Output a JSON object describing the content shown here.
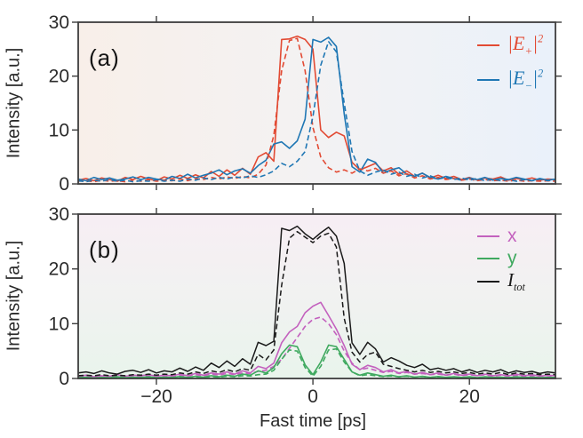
{
  "style": {
    "axis_color": "#3d3d3d",
    "tick_color": "#3d3d3d",
    "text_color": "#2b2b2b",
    "figure_background": "#ffffff"
  },
  "chart_data": [
    {
      "panel_key": "a",
      "panel_label": "(a)",
      "type": "line",
      "title": "",
      "xlabel": "",
      "ylabel": "Intensity [a.u.]",
      "xlim": [
        -30,
        31
      ],
      "ylim": [
        0,
        30
      ],
      "xticks": [
        -20,
        0,
        20
      ],
      "xtick_labels": [
        "−20",
        "0",
        "20"
      ],
      "show_xtick_labels": false,
      "yticks": [
        0,
        10,
        20,
        30
      ],
      "grid": false,
      "legend_position": "upper right",
      "background": {
        "direction": "horizontal",
        "stops": [
          {
            "offset": 0,
            "color": "#f8efe9"
          },
          {
            "offset": 0.5,
            "color": "#f3f2f3"
          },
          {
            "offset": 1,
            "color": "#eaf1fa"
          }
        ]
      },
      "x": [
        -30,
        -29,
        -28,
        -27,
        -26,
        -25,
        -24,
        -23,
        -22,
        -21,
        -20,
        -19,
        -18,
        -17,
        -16,
        -15,
        -14,
        -13,
        -12,
        -11,
        -10,
        -9,
        -8,
        -7,
        -6,
        -5,
        -4,
        -3,
        -2,
        -1,
        0,
        1,
        2,
        3,
        4,
        5,
        6,
        7,
        8,
        9,
        10,
        11,
        12,
        13,
        14,
        15,
        16,
        17,
        18,
        19,
        20,
        21,
        22,
        23,
        24,
        25,
        26,
        27,
        28,
        29,
        30,
        31
      ],
      "series": [
        {
          "id": "e-plus-solid",
          "legend": "|E₊|²",
          "style": "solid",
          "color": "#e24a33",
          "width": 1.6,
          "values": [
            0.7,
            1.0,
            0.6,
            1.1,
            0.8,
            0.5,
            1.2,
            0.8,
            1.4,
            0.9,
            0.6,
            1.3,
            0.9,
            1.6,
            1.0,
            1.7,
            1.1,
            2.3,
            1.4,
            2.6,
            1.6,
            2.9,
            1.8,
            5.0,
            5.8,
            4.2,
            26.8,
            26.9,
            27.4,
            26.8,
            25.0,
            10.0,
            8.6,
            9.6,
            8.9,
            4.0,
            2.6,
            3.2,
            3.8,
            2.4,
            3.0,
            1.8,
            2.4,
            1.4,
            2.0,
            1.1,
            1.6,
            1.0,
            1.4,
            0.8,
            1.2,
            0.7,
            1.1,
            0.9,
            1.3,
            0.7,
            1.0,
            0.8,
            1.1,
            0.7,
            0.9,
            0.8
          ]
        },
        {
          "id": "e-minus-solid",
          "legend": "|E₋|²",
          "style": "solid",
          "color": "#1f77b4",
          "width": 1.6,
          "values": [
            0.9,
            0.6,
            1.2,
            0.8,
            1.1,
            0.7,
            0.9,
            1.3,
            0.8,
            1.2,
            0.9,
            0.7,
            1.4,
            1.0,
            1.8,
            1.1,
            1.6,
            2.0,
            2.6,
            1.7,
            2.4,
            2.8,
            2.0,
            3.4,
            4.4,
            7.4,
            7.8,
            6.6,
            8.0,
            12.0,
            26.8,
            26.3,
            27.2,
            25.5,
            13.0,
            3.2,
            2.2,
            4.6,
            4.0,
            2.0,
            2.6,
            3.0,
            1.8,
            1.4,
            2.0,
            1.2,
            0.9,
            1.4,
            1.0,
            0.7,
            1.1,
            0.8,
            1.2,
            0.7,
            1.0,
            0.8,
            1.2,
            0.9,
            0.6,
            1.0,
            0.7,
            0.9
          ]
        },
        {
          "id": "e-plus-dashed",
          "legend": "|E₊|²",
          "style": "dashed",
          "color": "#e24a33",
          "width": 1.6,
          "values": [
            0.5,
            0.6,
            0.4,
            0.7,
            0.5,
            0.6,
            0.4,
            0.7,
            0.5,
            0.8,
            0.5,
            0.7,
            0.6,
            0.9,
            0.6,
            1.0,
            0.8,
            1.2,
            0.9,
            1.3,
            1.0,
            1.4,
            1.1,
            1.8,
            3.5,
            9.0,
            21.0,
            26.6,
            27.0,
            21.0,
            10.5,
            5.0,
            3.0,
            2.2,
            2.6,
            2.0,
            2.8,
            2.4,
            2.9,
            2.0,
            2.4,
            1.5,
            1.9,
            1.1,
            1.5,
            0.9,
            1.2,
            0.8,
            1.0,
            0.7,
            0.9,
            0.6,
            0.8,
            0.6,
            0.7,
            0.5,
            0.7,
            0.5,
            0.6,
            0.5,
            0.6,
            0.5
          ]
        },
        {
          "id": "e-minus-dashed",
          "legend": "|E₋|²",
          "style": "dashed",
          "color": "#1f77b4",
          "width": 1.6,
          "values": [
            0.6,
            0.4,
            0.7,
            0.5,
            0.8,
            0.5,
            0.7,
            0.4,
            0.6,
            0.5,
            0.8,
            0.5,
            0.7,
            0.5,
            0.9,
            0.7,
            1.1,
            0.8,
            1.2,
            0.9,
            1.3,
            1.1,
            1.5,
            1.2,
            1.7,
            2.4,
            3.8,
            3.2,
            4.2,
            6.0,
            12.5,
            22.0,
            26.4,
            24.5,
            15.0,
            6.0,
            2.4,
            1.6,
            2.2,
            2.6,
            1.8,
            2.2,
            1.4,
            1.8,
            1.1,
            1.5,
            0.9,
            1.2,
            0.8,
            1.1,
            0.7,
            1.0,
            0.6,
            0.9,
            0.6,
            0.8,
            0.5,
            0.8,
            0.6,
            0.9,
            0.6,
            0.8
          ]
        }
      ],
      "legend": [
        {
          "id": "e-plus",
          "text": "|E₊|²",
          "main": "|E",
          "sub": "+",
          "tail": "|",
          "sup": "2",
          "color": "#e24a33",
          "style": "serif-italic"
        },
        {
          "id": "e-minus",
          "text": "|E₋|²",
          "main": "|E",
          "sub": "−",
          "tail": "|",
          "sup": "2",
          "color": "#1f77b4",
          "style": "serif-italic"
        }
      ]
    },
    {
      "panel_key": "b",
      "panel_label": "(b)",
      "type": "line",
      "title": "",
      "xlabel": "Fast time [ps]",
      "ylabel": "Intensity [a.u.]",
      "xlim": [
        -30,
        31
      ],
      "ylim": [
        0,
        30
      ],
      "xticks": [
        -20,
        0,
        20
      ],
      "xtick_labels": [
        "−20",
        "0",
        "20"
      ],
      "show_xtick_labels": true,
      "yticks": [
        0,
        10,
        20,
        30
      ],
      "grid": false,
      "legend_position": "upper right",
      "background": {
        "direction": "vertical",
        "stops": [
          {
            "offset": 0,
            "color": "#f7eef4"
          },
          {
            "offset": 0.5,
            "color": "#f1f2f1"
          },
          {
            "offset": 1,
            "color": "#e9f4ec"
          }
        ]
      },
      "x": [
        -30,
        -29,
        -28,
        -27,
        -26,
        -25,
        -24,
        -23,
        -22,
        -21,
        -20,
        -19,
        -18,
        -17,
        -16,
        -15,
        -14,
        -13,
        -12,
        -11,
        -10,
        -9,
        -8,
        -7,
        -6,
        -5,
        -4,
        -3,
        -2,
        -1,
        0,
        1,
        2,
        3,
        4,
        5,
        6,
        7,
        8,
        9,
        10,
        11,
        12,
        13,
        14,
        15,
        16,
        17,
        18,
        19,
        20,
        21,
        22,
        23,
        24,
        25,
        26,
        27,
        28,
        29,
        30,
        31
      ],
      "series": [
        {
          "id": "x-solid",
          "legend": "x",
          "style": "solid",
          "color": "#c361be",
          "width": 1.6,
          "values": [
            0.4,
            0.6,
            0.3,
            0.5,
            0.4,
            0.7,
            0.4,
            0.6,
            0.5,
            0.7,
            0.4,
            0.6,
            0.5,
            0.8,
            0.5,
            0.9,
            0.6,
            1.0,
            0.8,
            1.2,
            0.8,
            1.4,
            1.0,
            2.2,
            1.8,
            2.8,
            6.5,
            8.5,
            9.5,
            12.0,
            13.2,
            13.9,
            11.5,
            9.0,
            6.0,
            2.6,
            1.6,
            2.4,
            2.0,
            1.2,
            1.6,
            1.0,
            1.3,
            0.8,
            1.1,
            0.7,
            1.0,
            0.6,
            0.9,
            0.6,
            0.8,
            0.5,
            0.8,
            0.5,
            0.7,
            0.5,
            0.8,
            0.5,
            0.7,
            0.4,
            0.6,
            0.5
          ]
        },
        {
          "id": "x-dashed",
          "legend": "x",
          "style": "dashed",
          "color": "#c361be",
          "width": 1.6,
          "values": [
            0.3,
            0.4,
            0.3,
            0.5,
            0.35,
            0.45,
            0.3,
            0.5,
            0.4,
            0.55,
            0.35,
            0.5,
            0.4,
            0.6,
            0.45,
            0.7,
            0.5,
            0.8,
            0.6,
            0.9,
            0.7,
            1.0,
            0.9,
            1.3,
            1.5,
            2.2,
            3.5,
            5.5,
            7.5,
            9.5,
            10.8,
            11.2,
            10.0,
            8.0,
            5.0,
            2.8,
            1.6,
            1.9,
            1.5,
            1.1,
            1.3,
            0.9,
            1.1,
            0.8,
            0.9,
            0.7,
            0.8,
            0.6,
            0.8,
            0.5,
            0.7,
            0.5,
            0.7,
            0.4,
            0.6,
            0.4,
            0.6,
            0.4,
            0.5,
            0.4,
            0.5,
            0.4
          ]
        },
        {
          "id": "y-solid",
          "legend": "y",
          "style": "solid",
          "color": "#3fa95f",
          "width": 1.6,
          "values": [
            0.15,
            0.25,
            0.1,
            0.2,
            0.15,
            0.3,
            0.15,
            0.25,
            0.2,
            0.3,
            0.15,
            0.25,
            0.2,
            0.35,
            0.2,
            0.4,
            0.25,
            0.5,
            0.3,
            0.6,
            0.4,
            0.8,
            0.6,
            1.4,
            1.0,
            2.0,
            4.5,
            6.1,
            5.8,
            2.5,
            0.7,
            3.0,
            6.1,
            5.8,
            3.5,
            1.2,
            0.6,
            1.0,
            0.7,
            0.4,
            0.6,
            0.3,
            0.5,
            0.25,
            0.4,
            0.2,
            0.35,
            0.2,
            0.3,
            0.2,
            0.3,
            0.15,
            0.3,
            0.2,
            0.25,
            0.15,
            0.3,
            0.2,
            0.25,
            0.15,
            0.2,
            0.2
          ]
        },
        {
          "id": "y-dashed",
          "legend": "y",
          "style": "dashed",
          "color": "#3fa95f",
          "width": 1.6,
          "values": [
            0.1,
            0.15,
            0.1,
            0.2,
            0.1,
            0.15,
            0.1,
            0.2,
            0.15,
            0.2,
            0.1,
            0.2,
            0.15,
            0.25,
            0.15,
            0.3,
            0.2,
            0.35,
            0.25,
            0.4,
            0.3,
            0.5,
            0.45,
            0.7,
            0.8,
            1.5,
            3.5,
            5.2,
            5.0,
            2.0,
            0.4,
            2.2,
            5.2,
            5.4,
            3.0,
            1.2,
            0.5,
            0.7,
            0.5,
            0.35,
            0.45,
            0.3,
            0.4,
            0.25,
            0.35,
            0.2,
            0.3,
            0.2,
            0.3,
            0.15,
            0.25,
            0.15,
            0.25,
            0.15,
            0.2,
            0.15,
            0.25,
            0.15,
            0.2,
            0.1,
            0.2,
            0.15
          ]
        },
        {
          "id": "i-tot-solid",
          "legend": "Iₜₒₜ",
          "style": "solid",
          "color": "#1a1a1a",
          "width": 1.5,
          "values": [
            1.0,
            1.2,
            0.9,
            1.4,
            1.0,
            0.8,
            1.3,
            1.5,
            1.1,
            1.6,
            1.0,
            1.4,
            1.2,
            1.9,
            1.3,
            2.1,
            1.5,
            2.8,
            2.0,
            3.2,
            2.2,
            3.6,
            2.6,
            6.6,
            6.0,
            6.8,
            27.4,
            27.0,
            27.8,
            26.4,
            25.4,
            26.6,
            27.6,
            26.0,
            21.0,
            6.5,
            4.4,
            6.6,
            5.4,
            3.0,
            3.8,
            3.2,
            2.4,
            2.0,
            2.6,
            1.6,
            1.9,
            1.5,
            1.8,
            1.2,
            1.6,
            1.1,
            1.5,
            1.2,
            1.6,
            1.0,
            1.4,
            1.1,
            1.3,
            0.9,
            1.2,
            1.0
          ]
        },
        {
          "id": "i-tot-dashed",
          "legend": "Iₜₒₜ",
          "style": "dashed",
          "color": "#1a1a1a",
          "width": 1.5,
          "values": [
            0.5,
            0.6,
            0.5,
            0.7,
            0.5,
            0.6,
            0.5,
            0.7,
            0.6,
            0.8,
            0.6,
            0.8,
            0.7,
            1.0,
            0.8,
            1.2,
            0.9,
            1.4,
            1.1,
            1.6,
            1.2,
            1.8,
            1.5,
            4.4,
            3.4,
            5.2,
            17.0,
            25.6,
            26.8,
            25.8,
            24.8,
            26.0,
            26.5,
            24.0,
            11.0,
            4.8,
            3.0,
            4.4,
            4.8,
            2.6,
            2.2,
            1.8,
            1.5,
            1.2,
            1.5,
            1.1,
            1.3,
            1.0,
            1.2,
            0.9,
            1.1,
            0.8,
            1.0,
            0.8,
            1.1,
            0.7,
            1.0,
            0.8,
            0.9,
            0.7,
            0.8,
            0.7
          ]
        }
      ],
      "legend": [
        {
          "id": "x",
          "text": "x",
          "main": "x",
          "color": "#c361be",
          "style": "sans"
        },
        {
          "id": "y",
          "text": "y",
          "main": "y",
          "color": "#3fa95f",
          "style": "sans"
        },
        {
          "id": "i-tot",
          "text": "Iₜₒₜ",
          "main": "I",
          "sub": "tot",
          "color": "#1a1a1a",
          "style": "serif-italic"
        }
      ]
    }
  ]
}
